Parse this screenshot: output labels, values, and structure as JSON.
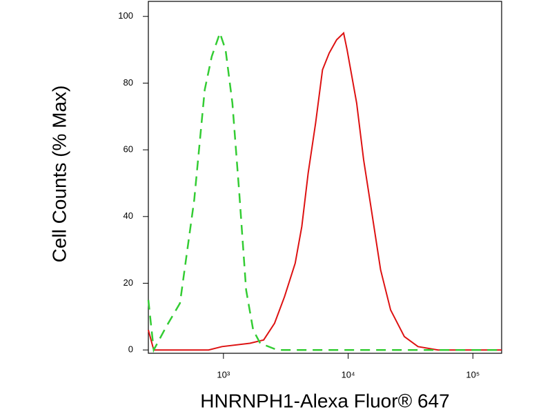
{
  "chart_data": {
    "type": "line",
    "xlabel": "HNRNPH1-Alexa Fluor® 647",
    "ylabel": "Cell Counts (% Max)",
    "x_scale": "log",
    "xlim": [
      250,
      170000
    ],
    "ylim": [
      -1,
      104.5
    ],
    "xticks": [
      {
        "value": 1000,
        "label": "10³"
      },
      {
        "value": 10000,
        "label": "10⁴"
      },
      {
        "value": 100000,
        "label": "10⁵"
      }
    ],
    "yticks": [
      0,
      20,
      40,
      60,
      80,
      100
    ],
    "series": [
      {
        "color": "#dd1111",
        "dashed": false,
        "x": [
          250,
          276,
          760,
          975,
          1630,
          2100,
          2570,
          3090,
          3760,
          4250,
          4780,
          5480,
          6230,
          7050,
          8090,
          9200,
          9800,
          11700,
          13300,
          15200,
          18200,
          21900,
          28200,
          36300,
          52500,
          170000
        ],
        "values": [
          6,
          0,
          0,
          1,
          2,
          3,
          8,
          16,
          26,
          37,
          53,
          68,
          84,
          89,
          93,
          95,
          90,
          74,
          57,
          43,
          24,
          12,
          4,
          1,
          0,
          0
        ]
      },
      {
        "color": "#33cc33",
        "dashed": true,
        "x": [
          250,
          276,
          348,
          448,
          583,
          708,
          806,
          937,
          1040,
          1180,
          1340,
          1520,
          1730,
          1970,
          2700,
          170000
        ],
        "values": [
          15,
          0,
          7,
          14,
          45,
          78,
          88,
          95,
          90,
          74,
          47,
          18,
          6,
          2,
          0,
          0
        ]
      }
    ]
  }
}
